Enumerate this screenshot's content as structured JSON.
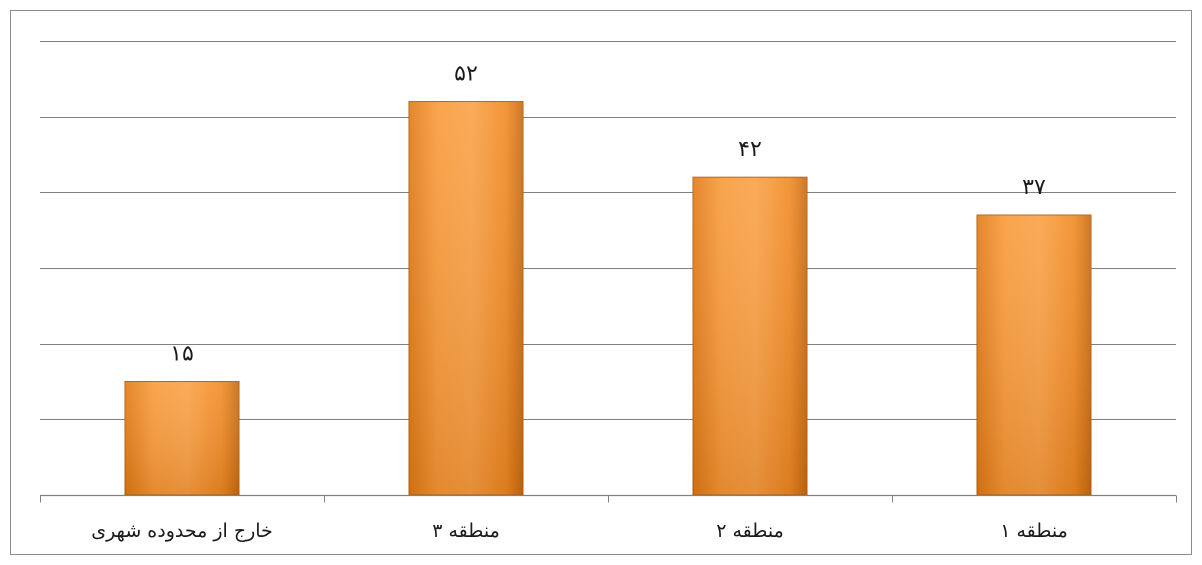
{
  "chart_data": {
    "type": "bar",
    "categories": [
      "خارج از محدوده شهری",
      "منطقه ۳",
      "منطقه ۲",
      "منطقه ۱"
    ],
    "values": [
      15,
      52,
      42,
      37
    ],
    "data_labels": [
      "۱۵",
      "۵۲",
      "۴۲",
      "۳۷"
    ],
    "title": "",
    "xlabel": "",
    "ylabel": "",
    "ylim": [
      0,
      60
    ],
    "gridline_step": 10,
    "grid": true,
    "legend": "none",
    "bar_color": "#f7922a",
    "bar_border_color": "#b35f0e"
  }
}
